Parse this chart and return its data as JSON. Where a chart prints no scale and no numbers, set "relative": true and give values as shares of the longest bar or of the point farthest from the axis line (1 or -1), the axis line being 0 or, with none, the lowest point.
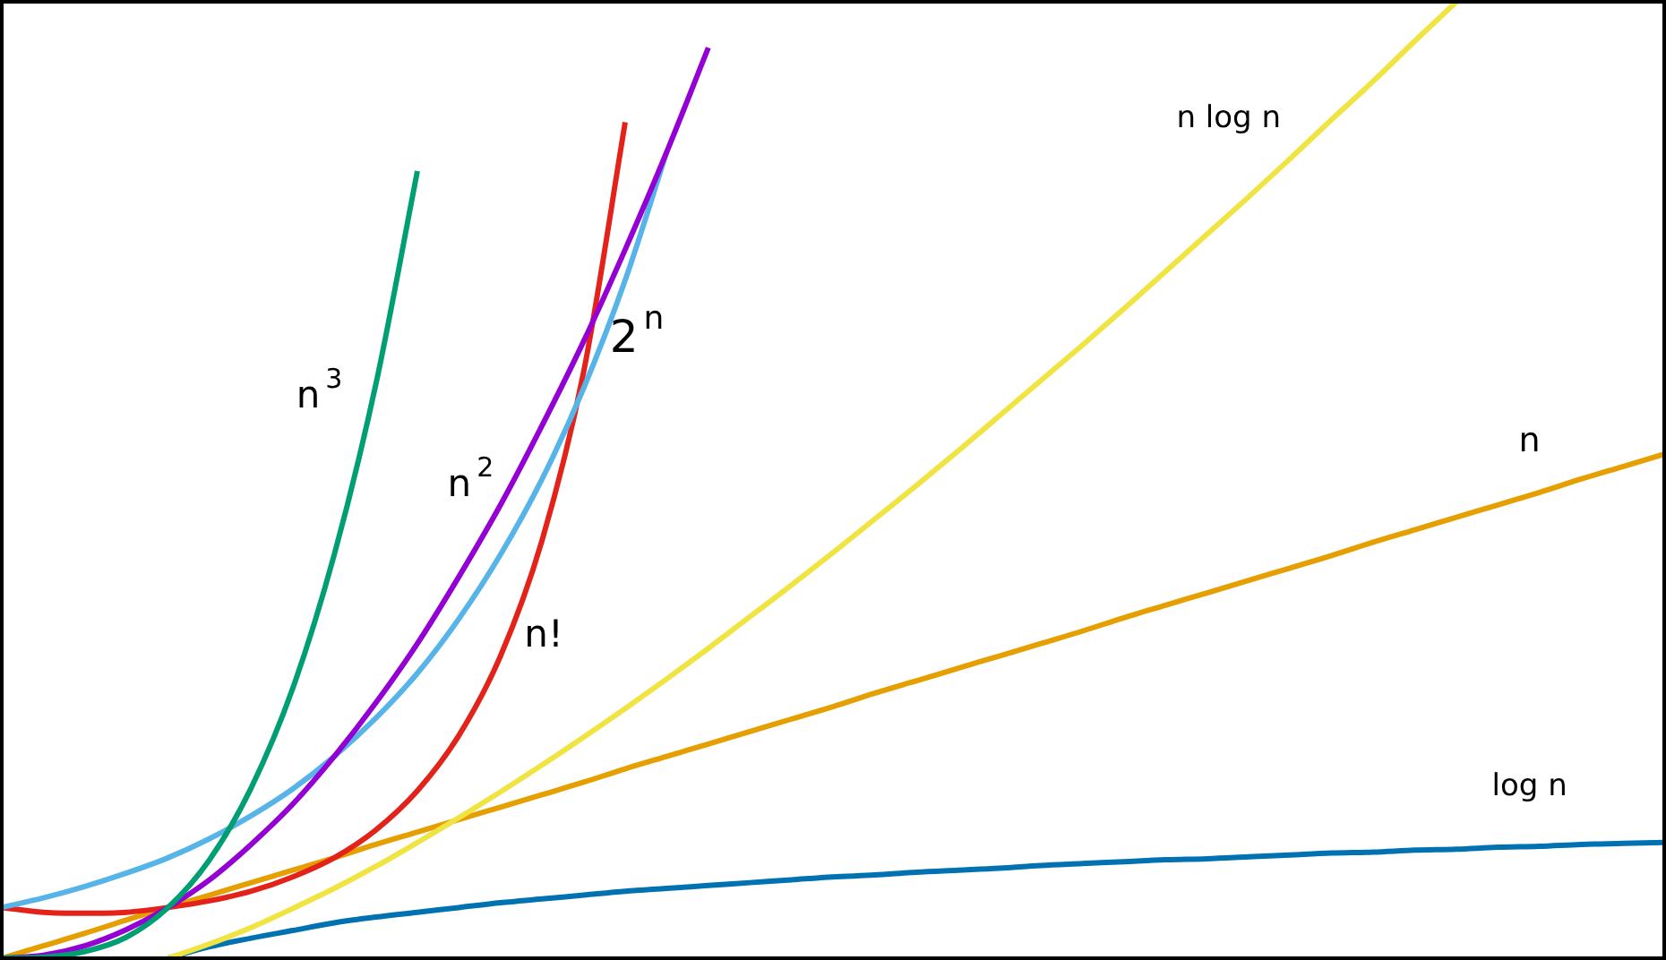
{
  "chart_data": {
    "type": "line",
    "relative": true,
    "marker": "none",
    "categories": [
      null,
      null,
      null,
      null,
      null,
      null,
      null,
      null,
      null,
      null,
      null,
      null,
      null,
      null,
      null,
      null,
      null,
      null,
      null,
      null,
      null,
      null,
      null,
      null,
      null,
      null,
      null,
      null,
      null,
      null,
      null,
      null,
      null,
      null,
      null,
      null,
      null,
      null,
      null,
      null,
      null
    ],
    "series": [
      {
        "name": "n$^{3}$",
        "color": "#009e73",
        "values": [
          0,
          0.001,
          0.007,
          0.022,
          0.053,
          0.103,
          0.178,
          0.282,
          0.422,
          0.6,
          0.823,
          null,
          null,
          null,
          null,
          null,
          null,
          null,
          null,
          null,
          null,
          null,
          null,
          null,
          null,
          null,
          null,
          null,
          null,
          null,
          null,
          null,
          null,
          null,
          null,
          null,
          null,
          null,
          null,
          null,
          null
        ]
      },
      {
        "name": "n$^{2}$",
        "color": "#9400d3",
        "values": [
          0,
          0.003,
          0.013,
          0.03,
          0.053,
          0.082,
          0.119,
          0.161,
          0.211,
          0.267,
          0.329,
          0.399,
          0.474,
          0.557,
          0.645,
          0.741,
          0.843,
          0.952,
          null,
          null,
          null,
          null,
          null,
          null,
          null,
          null,
          null,
          null,
          null,
          null,
          null,
          null,
          null,
          null,
          null,
          null,
          null,
          null,
          null,
          null,
          null
        ]
      },
      {
        "name": "2$^{n}$",
        "color": "#56b4e9",
        "values": [
          0.053,
          0.063,
          0.075,
          0.089,
          0.105,
          0.125,
          0.149,
          0.177,
          0.211,
          0.251,
          0.298,
          0.355,
          0.422,
          0.501,
          0.596,
          0.709,
          0.843,
          null,
          null,
          null,
          null,
          null,
          null,
          null,
          null,
          null,
          null,
          null,
          null,
          null,
          null,
          null,
          null,
          null,
          null,
          null,
          null,
          null,
          null,
          null,
          null
        ]
      },
      {
        "name": "n!",
        "color": "#e32219",
        "values": [
          0.053,
          0.048,
          0.047,
          0.048,
          0.053,
          0.06,
          0.07,
          0.085,
          0.105,
          0.134,
          0.175,
          0.233,
          0.316,
          0.437,
          0.613,
          0.874,
          null,
          null,
          null,
          null,
          null,
          null,
          null,
          null,
          null,
          null,
          null,
          null,
          null,
          null,
          null,
          null,
          null,
          null,
          null,
          null,
          null,
          null,
          null,
          null,
          null
        ]
      },
      {
        "name": "n log n",
        "color": "#f0e442",
        "values": [
          null,
          null,
          null,
          null,
          0,
          0.015,
          0.032,
          0.052,
          0.073,
          0.096,
          0.121,
          0.147,
          0.174,
          0.202,
          0.231,
          0.261,
          0.292,
          0.324,
          0.357,
          0.39,
          0.424,
          0.459,
          0.494,
          0.53,
          0.567,
          0.604,
          0.641,
          0.679,
          0.718,
          0.757,
          0.796,
          0.836,
          0.877,
          0.917,
          0.959,
          1,
          null,
          null,
          null,
          null,
          null
        ]
      },
      {
        "name": "n",
        "color": "#e69f00",
        "values": [
          0,
          0.013,
          0.026,
          0.04,
          0.053,
          0.066,
          0.079,
          0.092,
          0.105,
          0.119,
          0.132,
          0.145,
          0.158,
          0.171,
          0.184,
          0.198,
          0.211,
          0.224,
          0.237,
          0.25,
          0.263,
          0.277,
          0.29,
          0.303,
          0.316,
          0.329,
          0.342,
          0.356,
          0.369,
          0.382,
          0.395,
          0.408,
          0.421,
          0.435,
          0.448,
          0.461,
          0.474,
          0.487,
          0.501,
          0.514,
          0.527
        ]
      },
      {
        "name": "log n",
        "color": "#0072b2",
        "values": [
          null,
          null,
          null,
          null,
          0,
          0.012,
          0.021,
          0.029,
          0.037,
          0.043,
          0.048,
          0.053,
          0.058,
          0.062,
          0.066,
          0.07,
          0.073,
          0.076,
          0.079,
          0.082,
          0.085,
          0.087,
          0.09,
          0.092,
          0.094,
          0.097,
          0.099,
          0.101,
          0.103,
          0.104,
          0.106,
          0.108,
          0.11,
          0.111,
          0.113,
          0.114,
          0.116,
          0.117,
          0.119,
          0.12,
          0.121
        ]
      }
    ]
  }
}
